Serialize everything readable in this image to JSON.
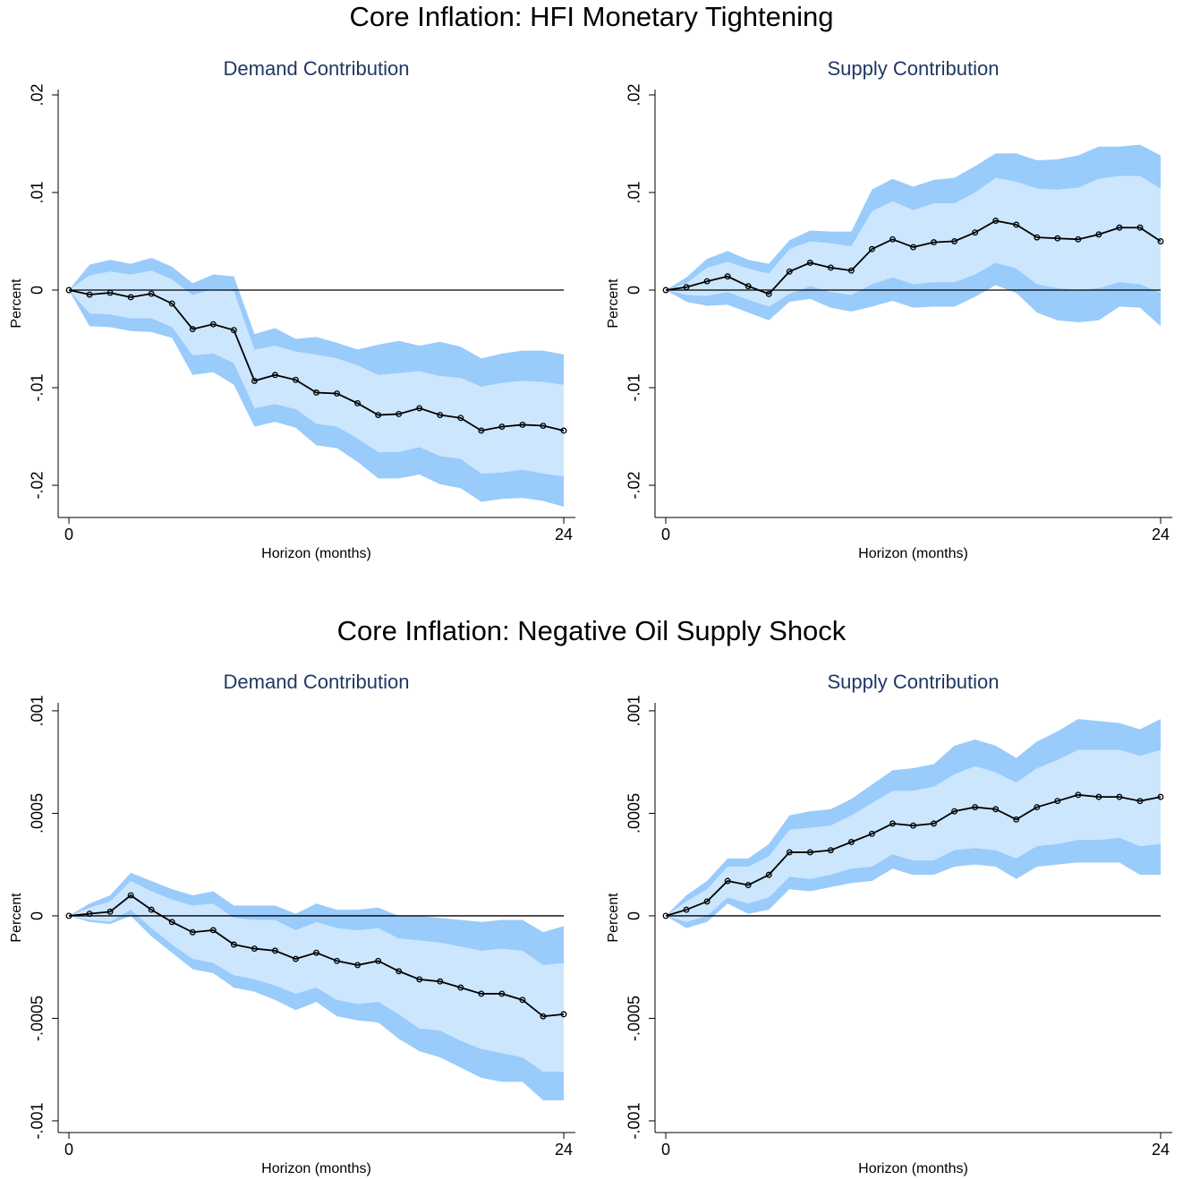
{
  "figure_titles": [
    "Core Inflation: HFI Monetary Tightening",
    "Core Inflation: Negative Oil Supply Shock"
  ],
  "chart_data": [
    {
      "type": "line",
      "title": "Demand Contribution",
      "xlabel": "Horizon (months)",
      "ylabel": "Percent",
      "x": [
        0,
        1,
        2,
        3,
        4,
        5,
        6,
        7,
        8,
        9,
        10,
        11,
        12,
        13,
        14,
        15,
        16,
        17,
        18,
        19,
        20,
        21,
        22,
        23,
        24
      ],
      "xlim": [
        0,
        24
      ],
      "xticks": [
        0,
        24
      ],
      "ylim": [
        -0.0233,
        0.02055
      ],
      "yticks": [
        {
          "value": -0.02,
          "label": "-.02"
        },
        {
          "value": -0.01,
          "label": "-.01"
        },
        0,
        {
          "value": 0.01,
          "label": ".01"
        },
        {
          "value": 0.02,
          "label": ".02"
        }
      ],
      "series": [
        {
          "color": "#000000",
          "values": [
            0,
            -0.00046,
            -0.00028,
            -0.00073,
            -0.00037,
            -0.00138,
            -0.004,
            -0.0035,
            -0.0041,
            -0.0093,
            -0.0087,
            -0.0092,
            -0.0105,
            -0.0106,
            -0.0116,
            -0.0128,
            -0.0127,
            -0.0121,
            -0.0128,
            -0.0131,
            -0.0144,
            -0.014,
            -0.0138,
            -0.0139,
            -0.0144
          ]
        }
      ],
      "bands": [
        {
          "color": "#99cbfb",
          "upper": [
            0,
            0.0026,
            0.0031,
            0.0027,
            0.0033,
            0.0024,
            0.0007,
            0.0016,
            0.0014,
            -0.0045,
            -0.0039,
            -0.005,
            -0.0048,
            -0.0054,
            -0.0061,
            -0.0056,
            -0.0052,
            -0.0057,
            -0.0053,
            -0.0058,
            -0.007,
            -0.0065,
            -0.0062,
            -0.0062,
            -0.0066
          ],
          "lower": [
            0,
            -0.0037,
            -0.0038,
            -0.0042,
            -0.0043,
            -0.0049,
            -0.0087,
            -0.0084,
            -0.0097,
            -0.014,
            -0.0135,
            -0.0141,
            -0.0159,
            -0.0162,
            -0.0176,
            -0.0193,
            -0.0193,
            -0.0189,
            -0.0199,
            -0.0203,
            -0.0217,
            -0.0214,
            -0.0213,
            -0.0216,
            -0.0222
          ]
        },
        {
          "color": "#cce6fe",
          "upper": [
            0,
            0.0015,
            0.0019,
            0.0016,
            0.002,
            0.0011,
            -0.0005,
            0.0001,
            -0.0001,
            -0.0061,
            -0.0057,
            -0.0063,
            -0.0066,
            -0.007,
            -0.0077,
            -0.0087,
            -0.0085,
            -0.0083,
            -0.0088,
            -0.009,
            -0.0099,
            -0.0095,
            -0.0093,
            -0.0094,
            -0.0097
          ],
          "lower": [
            0,
            -0.0024,
            -0.0025,
            -0.0029,
            -0.0029,
            -0.0038,
            -0.0067,
            -0.0065,
            -0.0075,
            -0.0121,
            -0.0117,
            -0.0122,
            -0.0137,
            -0.014,
            -0.0152,
            -0.0166,
            -0.0166,
            -0.0161,
            -0.017,
            -0.0173,
            -0.0188,
            -0.0187,
            -0.0184,
            -0.0188,
            -0.0191
          ]
        }
      ]
    },
    {
      "type": "line",
      "title": "Supply Contribution",
      "xlabel": "Horizon (months)",
      "ylabel": "Percent",
      "x": [
        0,
        1,
        2,
        3,
        4,
        5,
        6,
        7,
        8,
        9,
        10,
        11,
        12,
        13,
        14,
        15,
        16,
        17,
        18,
        19,
        20,
        21,
        22,
        23,
        24
      ],
      "xlim": [
        0,
        24
      ],
      "xticks": [
        0,
        24
      ],
      "ylim": [
        -0.0233,
        0.02055
      ],
      "yticks": [
        {
          "value": -0.02,
          "label": "-.02"
        },
        {
          "value": -0.01,
          "label": "-.01"
        },
        0,
        {
          "value": 0.01,
          "label": ".01"
        },
        {
          "value": 0.02,
          "label": ".02"
        }
      ],
      "series": [
        {
          "color": "#000000",
          "values": [
            0,
            0.0003,
            0.0009,
            0.0014,
            0.0004,
            -0.0004,
            0.0019,
            0.0028,
            0.0023,
            0.002,
            0.0042,
            0.0052,
            0.0044,
            0.0049,
            0.005,
            0.0059,
            0.0071,
            0.0067,
            0.0054,
            0.0053,
            0.0052,
            0.0057,
            0.0064,
            0.0064,
            0.005
          ]
        }
      ],
      "bands": [
        {
          "color": "#99cbfb",
          "upper": [
            0,
            0.0013,
            0.0032,
            0.004,
            0.0031,
            0.0027,
            0.0051,
            0.0061,
            0.006,
            0.006,
            0.0103,
            0.0114,
            0.0106,
            0.0113,
            0.0115,
            0.0127,
            0.014,
            0.014,
            0.0133,
            0.0134,
            0.0138,
            0.0147,
            0.0147,
            0.0149,
            0.0138
          ],
          "lower": [
            0,
            -0.0012,
            -0.0016,
            -0.0015,
            -0.0023,
            -0.0031,
            -0.0012,
            -0.0009,
            -0.0018,
            -0.0022,
            -0.0017,
            -0.0011,
            -0.0018,
            -0.0017,
            -0.0017,
            -0.0007,
            0.0005,
            -0.0003,
            -0.0023,
            -0.0031,
            -0.0033,
            -0.0031,
            -0.0017,
            -0.0018,
            -0.0037
          ]
        },
        {
          "color": "#cce6fe",
          "upper": [
            0,
            0.0007,
            0.0023,
            0.0029,
            0.0022,
            0.0017,
            0.0042,
            0.005,
            0.0048,
            0.0045,
            0.0081,
            0.0091,
            0.0082,
            0.0089,
            0.0089,
            0.01,
            0.0115,
            0.0111,
            0.0104,
            0.0103,
            0.0105,
            0.0114,
            0.0117,
            0.0117,
            0.0104
          ],
          "lower": [
            0,
            -0.0005,
            -0.0006,
            -0.0002,
            -0.001,
            -0.0017,
            -0.0004,
            0.0004,
            -0.0002,
            -0.0005,
            0.0006,
            0.0013,
            0.0006,
            0.0008,
            0.0008,
            0.0016,
            0.0028,
            0.0022,
            0.0006,
            0.0002,
            0,
            0.0002,
            0.0008,
            0.0006,
            -0.0003
          ]
        }
      ]
    },
    {
      "type": "line",
      "title": "Demand Contribution",
      "xlabel": "Horizon (months)",
      "ylabel": "Percent",
      "x": [
        0,
        1,
        2,
        3,
        4,
        5,
        6,
        7,
        8,
        9,
        10,
        11,
        12,
        13,
        14,
        15,
        16,
        17,
        18,
        19,
        20,
        21,
        22,
        23,
        24
      ],
      "xlim": [
        0,
        24
      ],
      "xticks": [
        0,
        24
      ],
      "ylim": [
        -0.001057,
        0.001039
      ],
      "yticks": [
        {
          "value": -0.001,
          "label": "-.001"
        },
        {
          "value": -0.0005,
          "label": "-.0005"
        },
        0,
        {
          "value": 0.0005,
          "label": ".0005"
        },
        {
          "value": 0.001,
          "label": ".001"
        }
      ],
      "series": [
        {
          "color": "#000000",
          "values": [
            0,
            1e-05,
            2e-05,
            0.0001,
            3e-05,
            -3e-05,
            -8e-05,
            -7e-05,
            -0.00014,
            -0.00016,
            -0.00017,
            -0.00021,
            -0.00018,
            -0.00022,
            -0.00024,
            -0.00022,
            -0.00027,
            -0.00031,
            -0.00032,
            -0.00035,
            -0.00038,
            -0.00038,
            -0.00041,
            -0.00049,
            -0.00048
          ]
        }
      ],
      "bands": [
        {
          "color": "#99cbfb",
          "upper": [
            0,
            6e-05,
            0.0001,
            0.00021,
            0.00017,
            0.00013,
            0.0001,
            0.00012,
            5e-05,
            5e-05,
            5e-05,
            1e-05,
            6e-05,
            3e-05,
            3e-05,
            4e-05,
            0,
            0,
            -1e-05,
            -2e-05,
            -3e-05,
            -2e-05,
            -2e-05,
            -8e-05,
            -5e-05
          ],
          "lower": [
            0,
            -3e-05,
            -4e-05,
            0,
            -0.0001,
            -0.00018,
            -0.00026,
            -0.00028,
            -0.00035,
            -0.00037,
            -0.00041,
            -0.00046,
            -0.00042,
            -0.00049,
            -0.00051,
            -0.00052,
            -0.0006,
            -0.00066,
            -0.00069,
            -0.00074,
            -0.00079,
            -0.00081,
            -0.00081,
            -0.0009,
            -0.0009
          ]
        },
        {
          "color": "#cce6fe",
          "upper": [
            0,
            4e-05,
            7e-05,
            0.00017,
            0.00012,
            8e-05,
            5e-05,
            6e-05,
            -1e-05,
            -2e-05,
            -2e-05,
            -7e-05,
            -3e-05,
            -6e-05,
            -7e-05,
            -6e-05,
            -0.00011,
            -0.00012,
            -0.00013,
            -0.00015,
            -0.00017,
            -0.00016,
            -0.00017,
            -0.00024,
            -0.00023
          ],
          "lower": [
            0,
            -2e-05,
            -3e-05,
            3e-05,
            -6e-05,
            -0.00014,
            -0.00021,
            -0.00023,
            -0.00029,
            -0.00031,
            -0.00034,
            -0.00038,
            -0.00035,
            -0.00041,
            -0.00043,
            -0.00042,
            -0.00048,
            -0.00055,
            -0.00056,
            -0.00061,
            -0.00065,
            -0.00067,
            -0.00069,
            -0.00076,
            -0.00076
          ]
        }
      ]
    },
    {
      "type": "line",
      "title": "Supply Contribution",
      "xlabel": "Horizon (months)",
      "ylabel": "Percent",
      "x": [
        0,
        1,
        2,
        3,
        4,
        5,
        6,
        7,
        8,
        9,
        10,
        11,
        12,
        13,
        14,
        15,
        16,
        17,
        18,
        19,
        20,
        21,
        22,
        23,
        24
      ],
      "xlim": [
        0,
        24
      ],
      "xticks": [
        0,
        24
      ],
      "ylim": [
        -0.001057,
        0.001039
      ],
      "yticks": [
        {
          "value": -0.001,
          "label": "-.001"
        },
        {
          "value": -0.0005,
          "label": "-.0005"
        },
        0,
        {
          "value": 0.0005,
          "label": ".0005"
        },
        {
          "value": 0.001,
          "label": ".001"
        }
      ],
      "series": [
        {
          "color": "#000000",
          "values": [
            0,
            3e-05,
            7e-05,
            0.00017,
            0.00015,
            0.0002,
            0.00031,
            0.00031,
            0.00032,
            0.00036,
            0.0004,
            0.00045,
            0.00044,
            0.00045,
            0.00051,
            0.00053,
            0.00052,
            0.00047,
            0.00053,
            0.00056,
            0.00059,
            0.00058,
            0.00058,
            0.00056,
            0.00058
          ]
        }
      ],
      "bands": [
        {
          "color": "#99cbfb",
          "upper": [
            0,
            0.0001,
            0.00017,
            0.00028,
            0.00028,
            0.00035,
            0.00049,
            0.00051,
            0.00052,
            0.00057,
            0.00064,
            0.00071,
            0.00072,
            0.00074,
            0.00083,
            0.00086,
            0.00083,
            0.00077,
            0.00085,
            0.0009,
            0.00096,
            0.00095,
            0.00094,
            0.00091,
            0.00096
          ],
          "lower": [
            0,
            -6e-05,
            -3e-05,
            6e-05,
            1e-05,
            3e-05,
            0.00013,
            0.00012,
            0.00014,
            0.00016,
            0.00017,
            0.00023,
            0.0002,
            0.0002,
            0.00024,
            0.00025,
            0.00024,
            0.00018,
            0.00024,
            0.00025,
            0.00026,
            0.00026,
            0.00026,
            0.0002,
            0.0002
          ]
        },
        {
          "color": "#cce6fe",
          "upper": [
            0,
            7e-05,
            0.00013,
            0.00024,
            0.00024,
            0.00029,
            0.00042,
            0.00043,
            0.00044,
            0.00049,
            0.00055,
            0.00061,
            0.00061,
            0.00063,
            0.00069,
            0.00073,
            0.0007,
            0.00065,
            0.00072,
            0.00076,
            0.00081,
            0.00081,
            0.00081,
            0.00078,
            0.00081
          ],
          "lower": [
            0,
            -3e-05,
            0,
            9e-05,
            6e-05,
            9e-05,
            0.00019,
            0.00018,
            0.0002,
            0.00023,
            0.00024,
            0.0003,
            0.00027,
            0.00027,
            0.00032,
            0.00033,
            0.00032,
            0.00028,
            0.00034,
            0.00035,
            0.00037,
            0.00037,
            0.00038,
            0.00034,
            0.00035
          ]
        }
      ]
    }
  ]
}
